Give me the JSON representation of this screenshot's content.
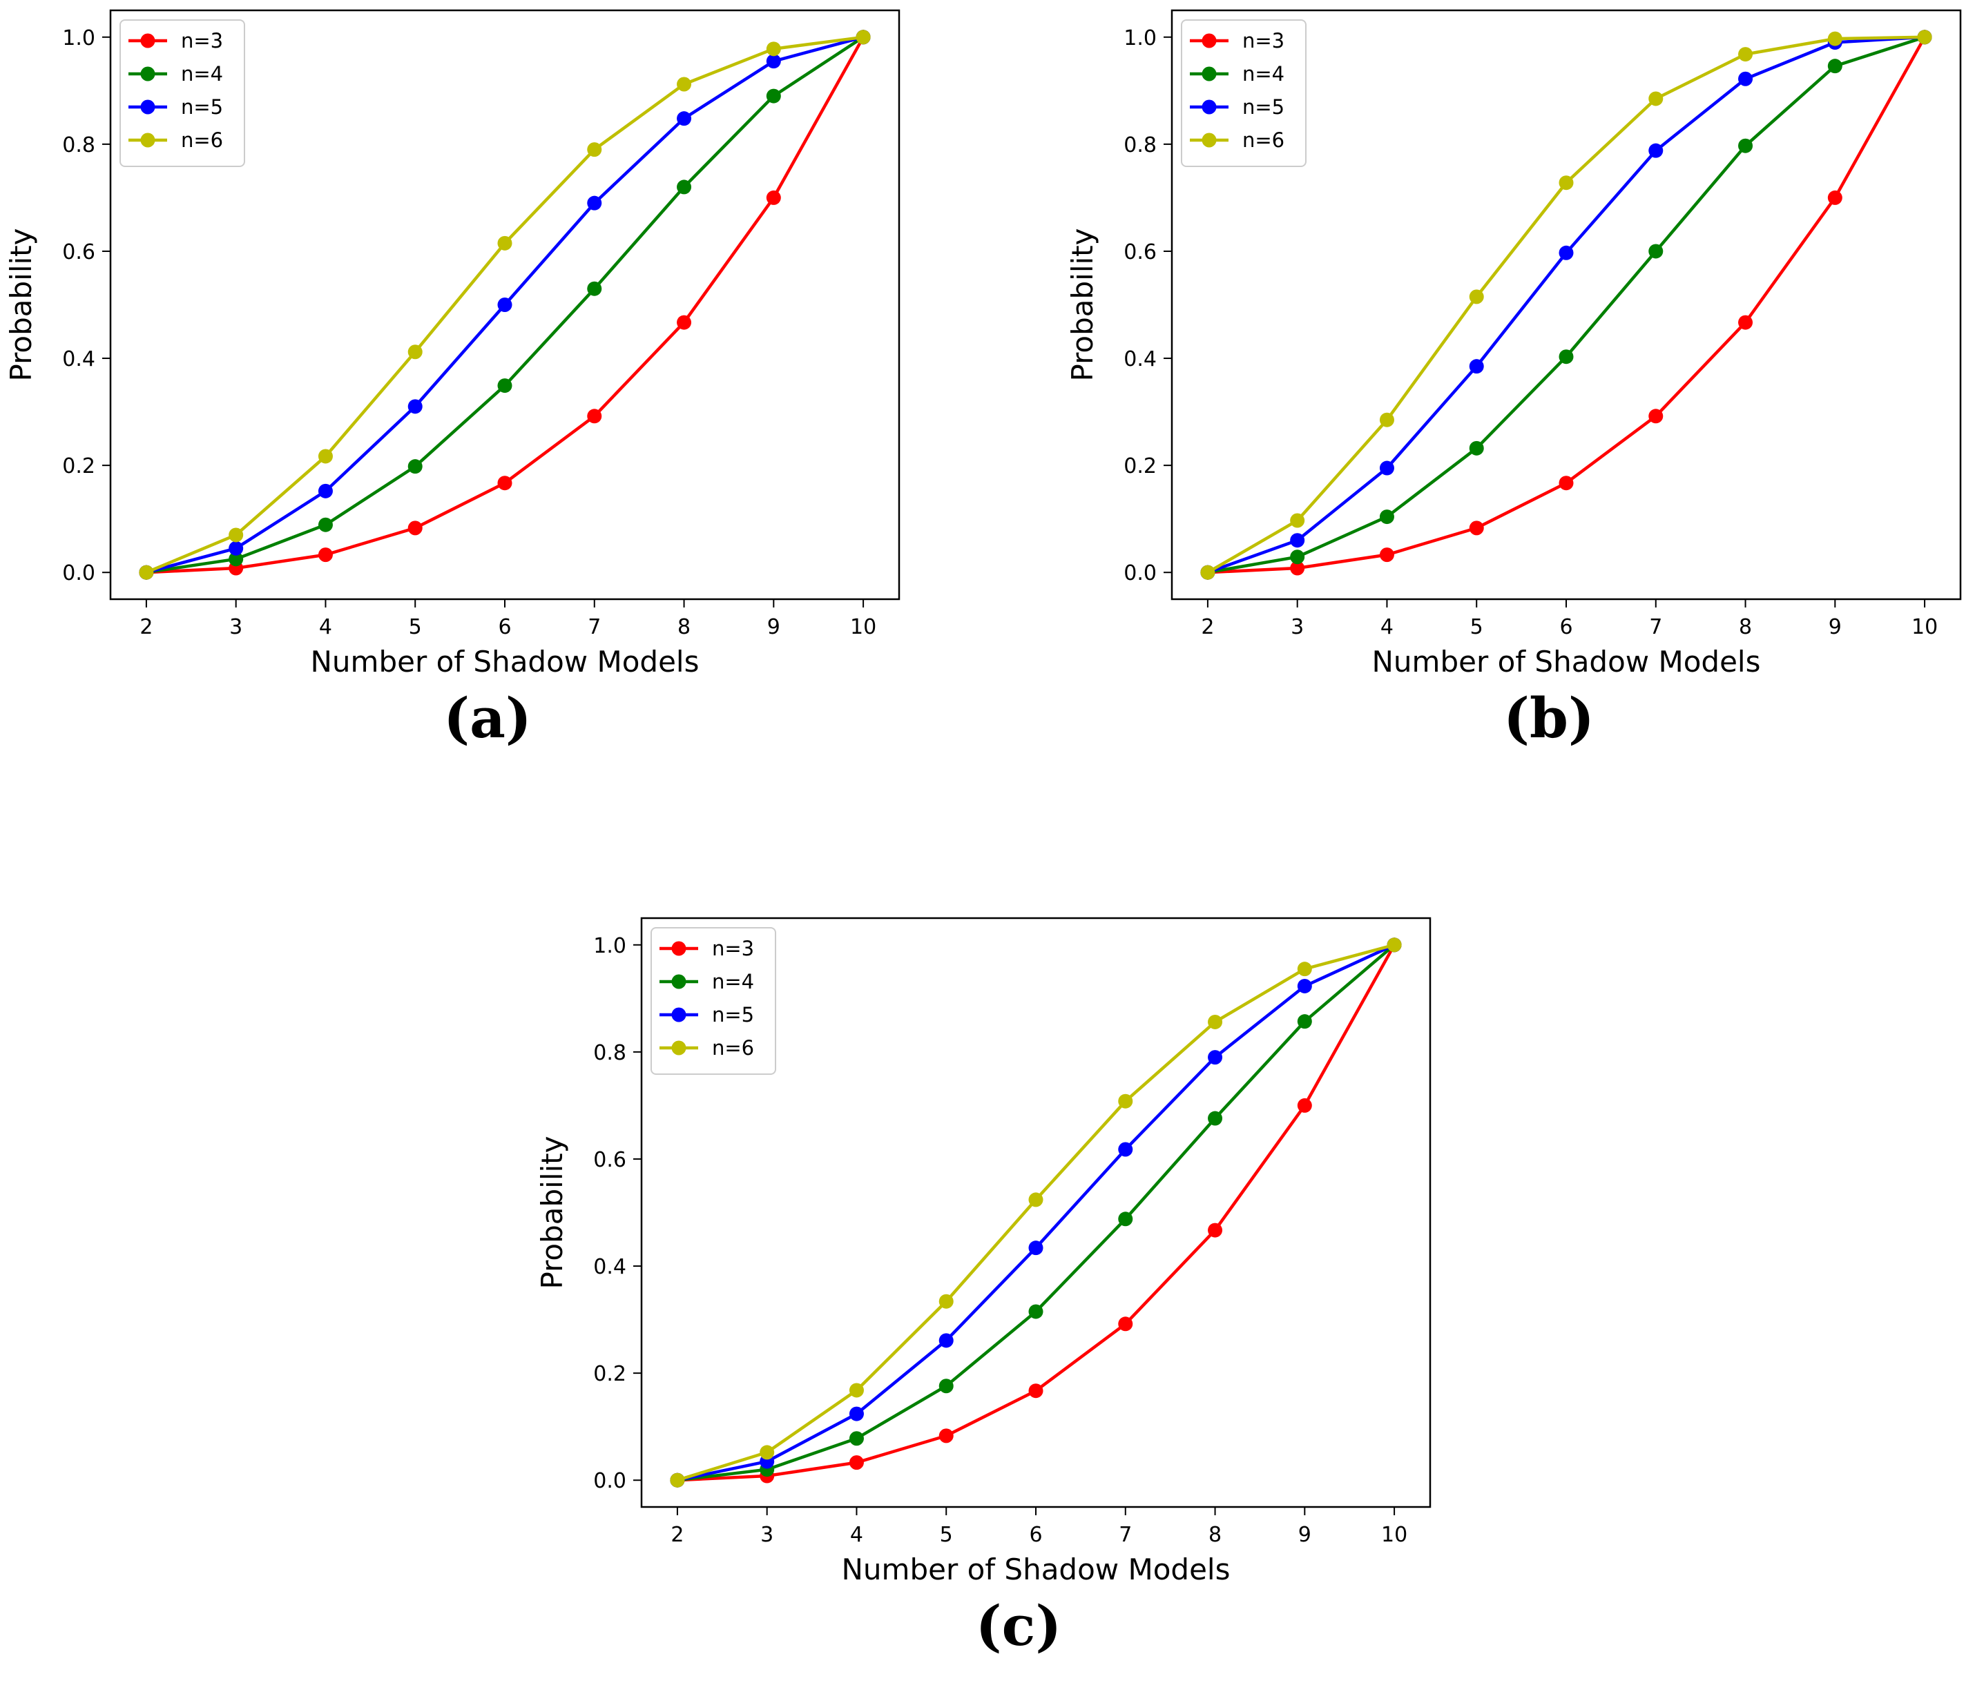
{
  "chart_data": [
    {
      "type": "line",
      "caption": "(a)",
      "xlabel": "Number of Shadow Models",
      "ylabel": "Probability",
      "x": [
        2,
        3,
        4,
        5,
        6,
        7,
        8,
        9,
        10
      ],
      "xticks": [
        "2",
        "3",
        "4",
        "5",
        "6",
        "7",
        "8",
        "9",
        "10"
      ],
      "yticks": [
        "0.0",
        "0.2",
        "0.4",
        "0.6",
        "0.8",
        "1.0"
      ],
      "xlim": [
        1.6,
        10.4
      ],
      "ylim": [
        -0.05,
        1.05
      ],
      "grid": false,
      "legend_position": "upper left",
      "series": [
        {
          "name": "n=3",
          "color": "#ff0000",
          "values": [
            0.0,
            0.008,
            0.033,
            0.083,
            0.167,
            0.292,
            0.467,
            0.7,
            1.0
          ]
        },
        {
          "name": "n=4",
          "color": "#008000",
          "values": [
            0.0,
            0.025,
            0.089,
            0.198,
            0.349,
            0.53,
            0.72,
            0.89,
            1.0
          ]
        },
        {
          "name": "n=5",
          "color": "#0000ff",
          "values": [
            0.0,
            0.045,
            0.152,
            0.31,
            0.5,
            0.69,
            0.848,
            0.955,
            1.0
          ]
        },
        {
          "name": "n=6",
          "color": "#bfbf00",
          "values": [
            0.0,
            0.07,
            0.217,
            0.412,
            0.615,
            0.79,
            0.912,
            0.978,
            1.0
          ]
        }
      ]
    },
    {
      "type": "line",
      "caption": "(b)",
      "xlabel": "Number of Shadow Models",
      "ylabel": "Probability",
      "x": [
        2,
        3,
        4,
        5,
        6,
        7,
        8,
        9,
        10
      ],
      "xticks": [
        "2",
        "3",
        "4",
        "5",
        "6",
        "7",
        "8",
        "9",
        "10"
      ],
      "yticks": [
        "0.0",
        "0.2",
        "0.4",
        "0.6",
        "0.8",
        "1.0"
      ],
      "xlim": [
        1.6,
        10.4
      ],
      "ylim": [
        -0.05,
        1.05
      ],
      "grid": false,
      "legend_position": "upper left",
      "series": [
        {
          "name": "n=3",
          "color": "#ff0000",
          "values": [
            0.0,
            0.008,
            0.033,
            0.083,
            0.167,
            0.292,
            0.467,
            0.7,
            1.0
          ]
        },
        {
          "name": "n=4",
          "color": "#008000",
          "values": [
            0.0,
            0.029,
            0.104,
            0.232,
            0.403,
            0.6,
            0.797,
            0.946,
            1.0
          ]
        },
        {
          "name": "n=5",
          "color": "#0000ff",
          "values": [
            0.0,
            0.06,
            0.195,
            0.385,
            0.597,
            0.788,
            0.922,
            0.99,
            1.0
          ]
        },
        {
          "name": "n=6",
          "color": "#bfbf00",
          "values": [
            0.0,
            0.097,
            0.285,
            0.515,
            0.728,
            0.885,
            0.968,
            0.997,
            1.0
          ]
        }
      ]
    },
    {
      "type": "line",
      "caption": "(c)",
      "xlabel": "Number of Shadow Models",
      "ylabel": "Probability",
      "x": [
        2,
        3,
        4,
        5,
        6,
        7,
        8,
        9,
        10
      ],
      "xticks": [
        "2",
        "3",
        "4",
        "5",
        "6",
        "7",
        "8",
        "9",
        "10"
      ],
      "yticks": [
        "0.0",
        "0.2",
        "0.4",
        "0.6",
        "0.8",
        "1.0"
      ],
      "xlim": [
        1.6,
        10.4
      ],
      "ylim": [
        -0.05,
        1.05
      ],
      "grid": false,
      "legend_position": "upper left",
      "series": [
        {
          "name": "n=3",
          "color": "#ff0000",
          "values": [
            0.0,
            0.008,
            0.033,
            0.083,
            0.167,
            0.292,
            0.467,
            0.7,
            1.0
          ]
        },
        {
          "name": "n=4",
          "color": "#008000",
          "values": [
            0.0,
            0.02,
            0.078,
            0.176,
            0.315,
            0.488,
            0.676,
            0.857,
            1.0
          ]
        },
        {
          "name": "n=5",
          "color": "#0000ff",
          "values": [
            0.0,
            0.035,
            0.124,
            0.261,
            0.434,
            0.618,
            0.79,
            0.923,
            1.0
          ]
        },
        {
          "name": "n=6",
          "color": "#bfbf00",
          "values": [
            0.0,
            0.052,
            0.168,
            0.334,
            0.524,
            0.708,
            0.856,
            0.955,
            1.0
          ]
        }
      ]
    }
  ]
}
